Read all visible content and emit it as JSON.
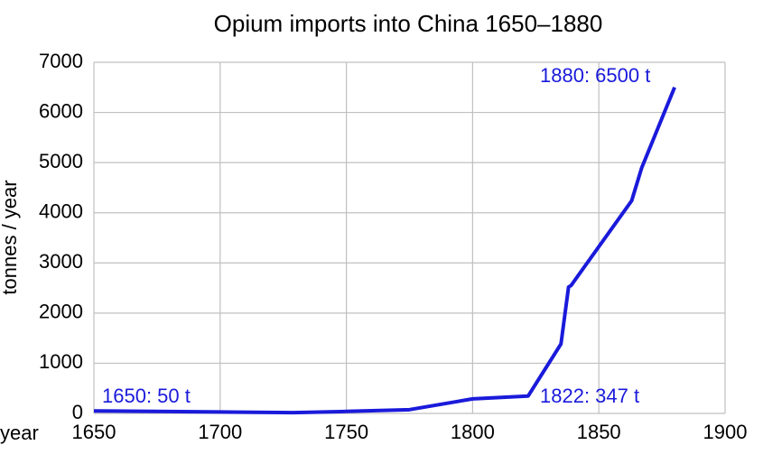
{
  "chart_data": {
    "type": "line",
    "title": "Opium imports into China 1650–1880",
    "x_label": "year",
    "y_label": "tonnes / year",
    "x": [
      1650,
      1700,
      1729,
      1750,
      1775,
      1800,
      1822,
      1835,
      1838,
      1839,
      1863,
      1867,
      1880
    ],
    "series": [
      {
        "name": "Opium imports",
        "color": "#1a1adb",
        "values": [
          50,
          30,
          15,
          40,
          75,
          290,
          347,
          1385,
          2520,
          2550,
          4240,
          4900,
          6500
        ]
      }
    ],
    "annotations": [
      "1650: 50 t",
      "1880: 6500 t",
      "1822: 347 t"
    ],
    "xlim": [
      1650,
      1900
    ],
    "xticks": [
      1650,
      1700,
      1750,
      1800,
      1850,
      1900
    ],
    "ylim": [
      0,
      7000
    ],
    "yticks": [
      0,
      1000,
      2000,
      3000,
      4000,
      5000,
      6000,
      7000
    ],
    "grid": true
  }
}
